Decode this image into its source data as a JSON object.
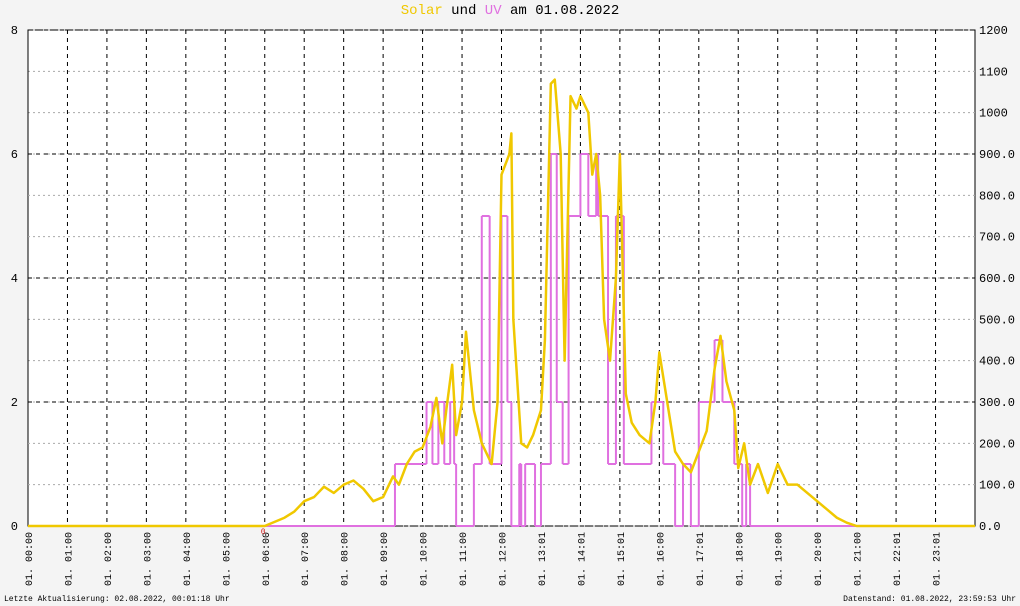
{
  "chart_data": {
    "type": "line",
    "title": {
      "solar": "Solar",
      "und": "und",
      "uv": "UV",
      "date": "am 01.08.2022"
    },
    "xlim": [
      0,
      24
    ],
    "xticks": [
      {
        "value": 0,
        "label": "01. 00:00"
      },
      {
        "value": 1,
        "label": "01. 01:00"
      },
      {
        "value": 2,
        "label": "01. 02:00"
      },
      {
        "value": 3,
        "label": "01. 03:00"
      },
      {
        "value": 4,
        "label": "01. 04:00"
      },
      {
        "value": 5,
        "label": "01. 05:00"
      },
      {
        "value": 6,
        "label": "01. 06:00"
      },
      {
        "value": 7,
        "label": "01. 07:00"
      },
      {
        "value": 8,
        "label": "01. 08:00"
      },
      {
        "value": 9,
        "label": "01. 09:00"
      },
      {
        "value": 10,
        "label": "01. 10:00"
      },
      {
        "value": 11,
        "label": "01. 11:00"
      },
      {
        "value": 12,
        "label": "01. 12:00"
      },
      {
        "value": 13,
        "label": "01. 13:01"
      },
      {
        "value": 14,
        "label": "01. 14:01"
      },
      {
        "value": 15,
        "label": "01. 15:01"
      },
      {
        "value": 16,
        "label": "01. 16:00"
      },
      {
        "value": 17,
        "label": "01. 17:01"
      },
      {
        "value": 18,
        "label": "01. 18:00"
      },
      {
        "value": 19,
        "label": "01. 19:00"
      },
      {
        "value": 20,
        "label": "01. 20:00"
      },
      {
        "value": 21,
        "label": "01. 21:00"
      },
      {
        "value": 22,
        "label": "01. 22:01"
      },
      {
        "value": 23,
        "label": "01. 23:01"
      }
    ],
    "ylim": [
      0,
      8
    ],
    "yticks": [
      0,
      2,
      4,
      6,
      8
    ],
    "y2lim": [
      0,
      1200
    ],
    "y2ticks": [
      {
        "value": 0,
        "label": "0.0"
      },
      {
        "value": 100,
        "label": "100.0"
      },
      {
        "value": 200,
        "label": "200.0"
      },
      {
        "value": 300,
        "label": "300.0"
      },
      {
        "value": 400,
        "label": "400.0"
      },
      {
        "value": 500,
        "label": "500.0"
      },
      {
        "value": 600,
        "label": "600.0"
      },
      {
        "value": 700,
        "label": "700.0"
      },
      {
        "value": 800,
        "label": "800.0"
      },
      {
        "value": 900,
        "label": "900.0"
      },
      1000,
      1100,
      1200
    ],
    "grid": true,
    "series": [
      {
        "name": "Solar",
        "color": "#f0c800",
        "axis": "y2",
        "step": false,
        "x": [
          0,
          6.0,
          6.25,
          6.5,
          6.75,
          7.0,
          7.25,
          7.5,
          7.75,
          8.0,
          8.25,
          8.5,
          8.75,
          9.0,
          9.25,
          9.4,
          9.6,
          9.8,
          10.0,
          10.2,
          10.35,
          10.5,
          10.6,
          10.75,
          10.85,
          11.0,
          11.1,
          11.3,
          11.5,
          11.75,
          11.9,
          12.0,
          12.2,
          12.25,
          12.3,
          12.5,
          12.65,
          12.8,
          13.0,
          13.1,
          13.25,
          13.35,
          13.5,
          13.6,
          13.75,
          13.9,
          14.0,
          14.2,
          14.3,
          14.4,
          14.5,
          14.6,
          14.75,
          14.9,
          15.0,
          15.15,
          15.3,
          15.5,
          15.75,
          15.9,
          16.0,
          16.2,
          16.4,
          16.6,
          16.8,
          17.0,
          17.2,
          17.4,
          17.55,
          17.7,
          17.9,
          18.0,
          18.15,
          18.3,
          18.5,
          18.75,
          19.0,
          19.25,
          19.5,
          19.75,
          20.0,
          20.25,
          20.5,
          20.75,
          21.0,
          24
        ],
        "values": [
          0,
          0,
          10,
          20,
          35,
          60,
          70,
          95,
          80,
          100,
          110,
          90,
          60,
          70,
          120,
          100,
          150,
          180,
          190,
          240,
          310,
          200,
          280,
          390,
          220,
          300,
          470,
          280,
          200,
          150,
          300,
          850,
          900,
          950,
          500,
          200,
          190,
          220,
          280,
          450,
          1070,
          1080,
          900,
          400,
          1040,
          1010,
          1040,
          1000,
          850,
          900,
          800,
          500,
          400,
          600,
          900,
          320,
          250,
          220,
          200,
          300,
          420,
          300,
          180,
          150,
          130,
          180,
          230,
          380,
          460,
          350,
          280,
          140,
          200,
          100,
          150,
          80,
          150,
          100,
          100,
          80,
          60,
          40,
          20,
          8,
          0,
          0
        ]
      },
      {
        "name": "UV",
        "color": "#e070e0",
        "axis": "y",
        "step": true,
        "x": [
          0,
          9.3,
          10.1,
          10.25,
          10.4,
          10.55,
          10.7,
          10.8,
          10.85,
          11.3,
          11.5,
          11.7,
          12.0,
          12.15,
          12.25,
          12.45,
          12.5,
          12.6,
          12.85,
          13.0,
          13.25,
          13.4,
          13.55,
          13.7,
          14.0,
          14.2,
          14.4,
          14.45,
          14.7,
          14.9,
          15.1,
          15.8,
          16.1,
          16.4,
          16.6,
          16.8,
          17.0,
          17.4,
          17.6,
          17.9,
          18.1,
          18.2,
          18.3,
          24
        ],
        "values": [
          0,
          1,
          2,
          1,
          2,
          1,
          2,
          1,
          0,
          1,
          5,
          1,
          5,
          2,
          0,
          1,
          0,
          1,
          0,
          1,
          6,
          2,
          1,
          5,
          6,
          5,
          6,
          5,
          1,
          5,
          1,
          2,
          1,
          0,
          1,
          0,
          2,
          3,
          2,
          1,
          0,
          1,
          0,
          0
        ]
      }
    ],
    "annotations": [
      {
        "x": 6.0,
        "text": "0"
      }
    ],
    "footer_left": "Letzte Aktualisierung: 02.08.2022, 00:01:18 Uhr",
    "footer_right": "Datenstand: 01.08.2022, 23:59:53 Uhr"
  }
}
